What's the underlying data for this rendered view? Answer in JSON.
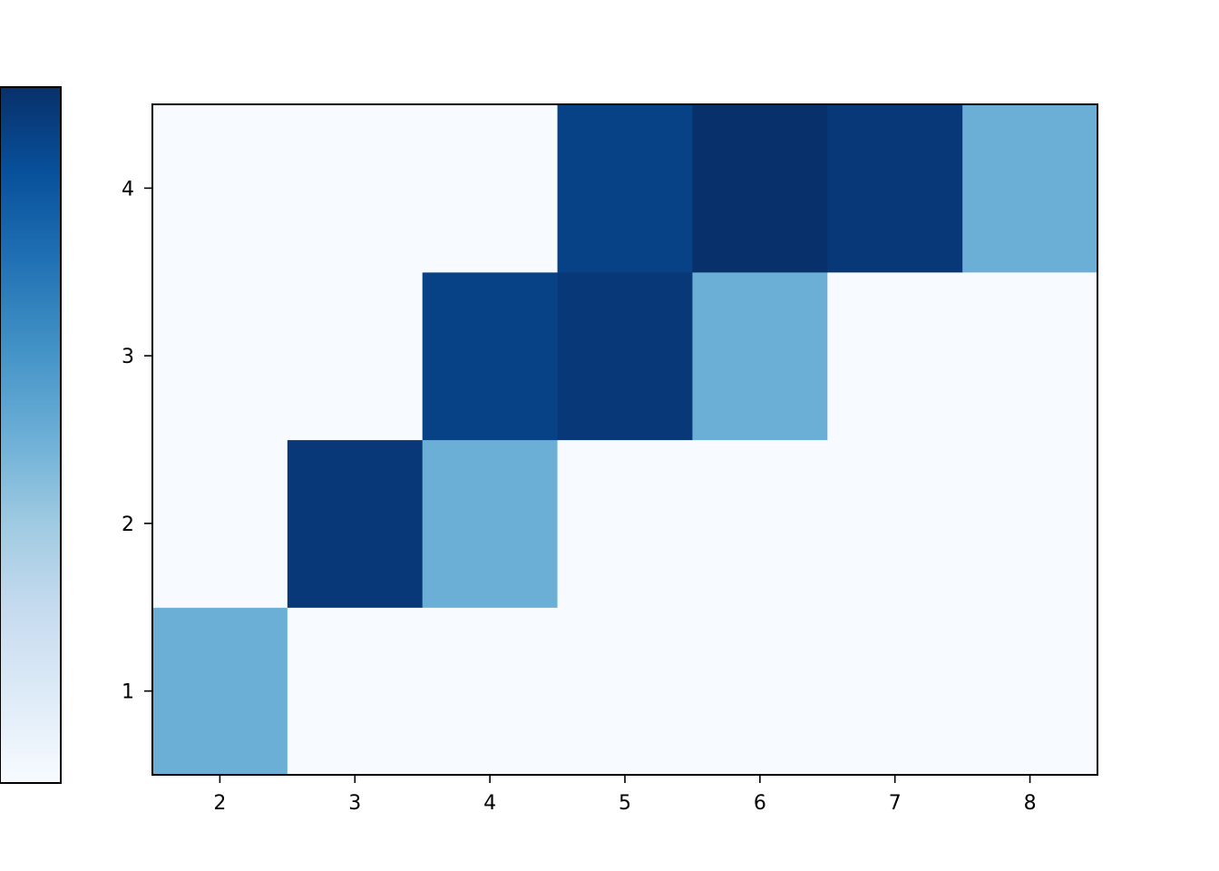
{
  "chart_data": {
    "type": "heatmap",
    "title": "",
    "xlabel": "",
    "ylabel": "",
    "x": [
      2,
      3,
      4,
      5,
      6,
      7,
      8
    ],
    "y": [
      1,
      2,
      3,
      4
    ],
    "xlim": [
      1.5,
      8.5
    ],
    "ylim": [
      0.5,
      4.5
    ],
    "colormap": "Blues",
    "vmin": 0,
    "vmax": 1,
    "values": [
      [
        0.5,
        0,
        0,
        0,
        0,
        0,
        0
      ],
      [
        0,
        0.97,
        0.5,
        0,
        0,
        0,
        0
      ],
      [
        0,
        0,
        0.93,
        0.97,
        0.5,
        0,
        0
      ],
      [
        0,
        0,
        0,
        0.93,
        1.0,
        0.97,
        0.5
      ]
    ],
    "colorbar": {
      "position": "left",
      "tick_labels": []
    },
    "grid": false
  }
}
